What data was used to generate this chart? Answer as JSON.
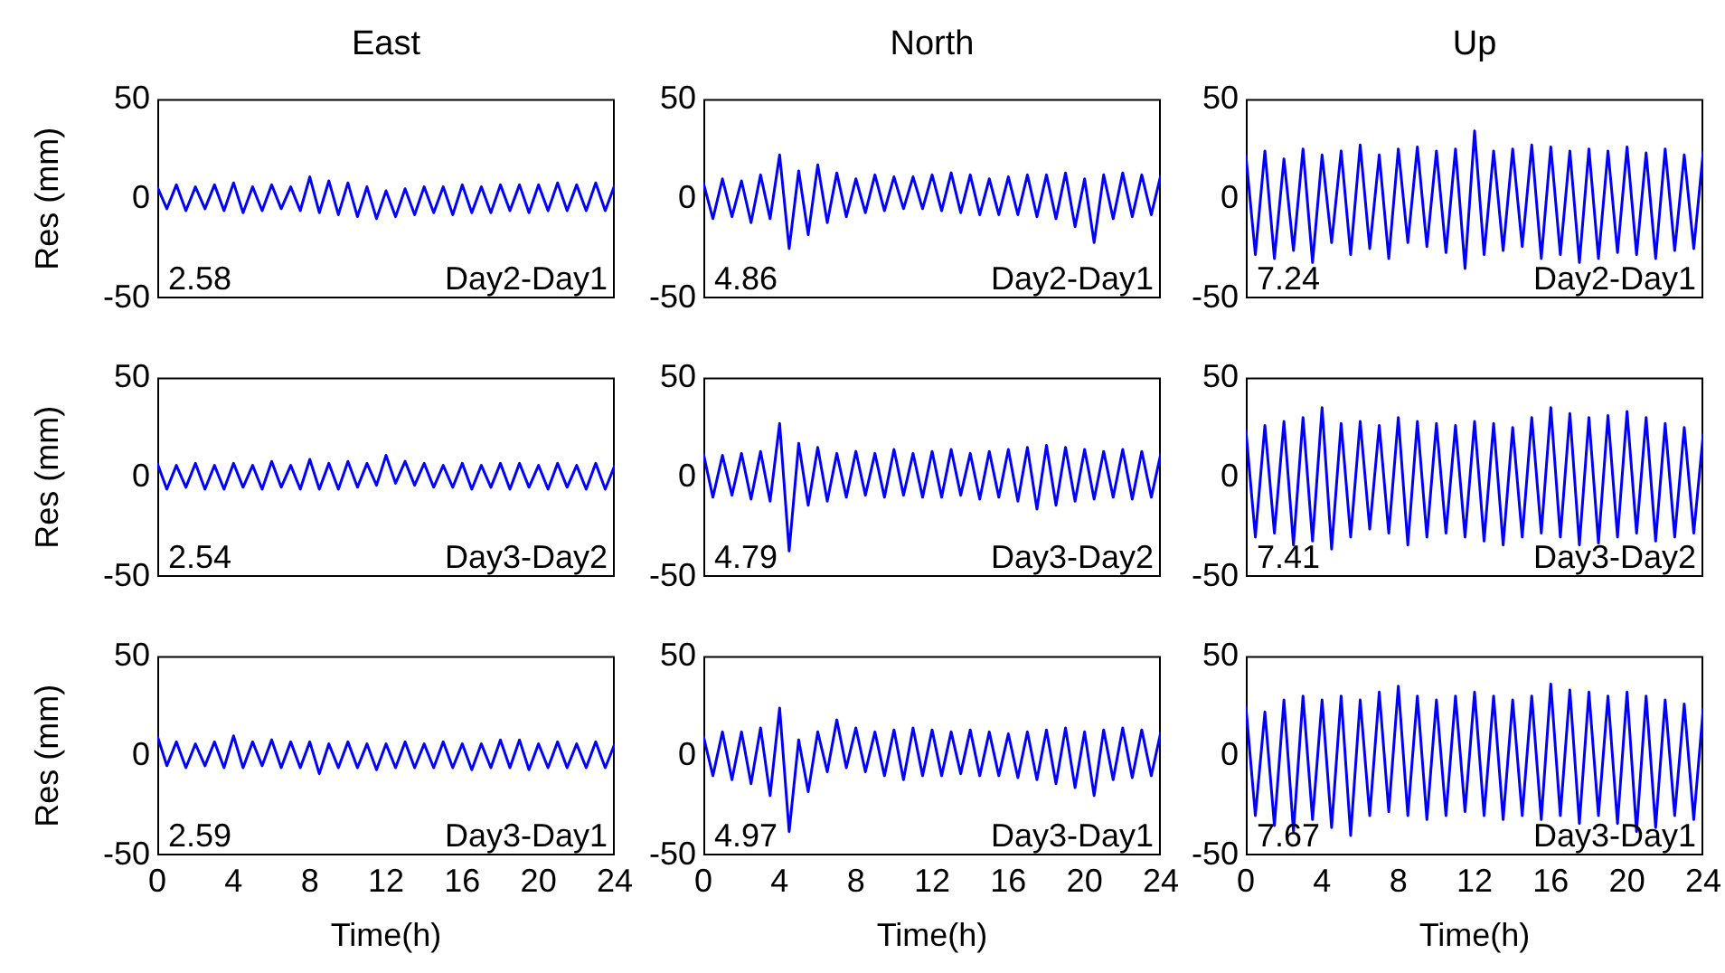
{
  "chart_data": [
    {
      "type": "line",
      "title": "East",
      "ylabel": "Res (mm)",
      "annotations": [
        "2.58",
        "Day2-Day1"
      ],
      "xlim": [
        0,
        24
      ],
      "xticks": [
        0,
        4,
        8,
        12,
        16,
        20,
        24
      ],
      "ylim": [
        -50,
        50
      ],
      "yticks": [
        -50,
        0,
        50
      ],
      "tick_labels": "y",
      "x": [
        0,
        0.5,
        1,
        1.5,
        2,
        2.5,
        3,
        3.5,
        4,
        4.5,
        5,
        5.5,
        6,
        6.5,
        7,
        7.5,
        8,
        8.5,
        9,
        9.5,
        10,
        10.5,
        11,
        11.5,
        12,
        12.5,
        13,
        13.5,
        14,
        14.5,
        15,
        15.5,
        16,
        16.5,
        17,
        17.5,
        18,
        18.5,
        19,
        19.5,
        20,
        20.5,
        21,
        21.5,
        22,
        22.5,
        23,
        23.5,
        24
      ],
      "series": [
        {
          "color": "#0000ff",
          "values": [
            6,
            -5,
            7,
            -6,
            6,
            -5,
            7,
            -6,
            8,
            -7,
            6,
            -6,
            7,
            -5,
            6,
            -6,
            11,
            -7,
            9,
            -8,
            8,
            -9,
            6,
            -10,
            4,
            -9,
            5,
            -8,
            6,
            -7,
            6,
            -8,
            7,
            -7,
            6,
            -7,
            7,
            -6,
            7,
            -7,
            7,
            -6,
            8,
            -6,
            7,
            -6,
            8,
            -6,
            7
          ]
        }
      ]
    },
    {
      "type": "line",
      "title": "North",
      "annotations": [
        "4.86",
        "Day2-Day1"
      ],
      "xlim": [
        0,
        24
      ],
      "xticks": [
        0,
        4,
        8,
        12,
        16,
        20,
        24
      ],
      "ylim": [
        -50,
        50
      ],
      "yticks": [
        -50,
        0,
        50
      ],
      "tick_labels": "y",
      "x": [
        0,
        0.5,
        1,
        1.5,
        2,
        2.5,
        3,
        3.5,
        4,
        4.5,
        5,
        5.5,
        6,
        6.5,
        7,
        7.5,
        8,
        8.5,
        9,
        9.5,
        10,
        10.5,
        11,
        11.5,
        12,
        12.5,
        13,
        13.5,
        14,
        14.5,
        15,
        15.5,
        16,
        16.5,
        17,
        17.5,
        18,
        18.5,
        19,
        19.5,
        20,
        20.5,
        21,
        21.5,
        22,
        22.5,
        23,
        23.5,
        24
      ],
      "series": [
        {
          "color": "#0000ff",
          "values": [
            8,
            -10,
            10,
            -9,
            9,
            -12,
            12,
            -10,
            22,
            -25,
            14,
            -18,
            17,
            -12,
            13,
            -9,
            10,
            -7,
            12,
            -6,
            11,
            -5,
            11,
            -5,
            12,
            -6,
            13,
            -7,
            12,
            -8,
            10,
            -8,
            11,
            -8,
            12,
            -9,
            12,
            -10,
            13,
            -14,
            10,
            -22,
            12,
            -10,
            13,
            -9,
            12,
            -8,
            12
          ]
        }
      ]
    },
    {
      "type": "line",
      "title": "Up",
      "annotations": [
        "7.24",
        "Day2-Day1"
      ],
      "xlim": [
        0,
        24
      ],
      "xticks": [
        0,
        4,
        8,
        12,
        16,
        20,
        24
      ],
      "ylim": [
        -50,
        50
      ],
      "yticks": [
        -50,
        0,
        50
      ],
      "tick_labels": "y",
      "x": [
        0,
        0.5,
        1,
        1.5,
        2,
        2.5,
        3,
        3.5,
        4,
        4.5,
        5,
        5.5,
        6,
        6.5,
        7,
        7.5,
        8,
        8.5,
        9,
        9.5,
        10,
        10.5,
        11,
        11.5,
        12,
        12.5,
        13,
        13.5,
        14,
        14.5,
        15,
        15.5,
        16,
        16.5,
        17,
        17.5,
        18,
        18.5,
        19,
        19.5,
        20,
        20.5,
        21,
        21.5,
        22,
        22.5,
        23,
        23.5,
        24
      ],
      "series": [
        {
          "color": "#0000ff",
          "values": [
            22,
            -28,
            24,
            -30,
            20,
            -26,
            25,
            -32,
            22,
            -22,
            24,
            -28,
            27,
            -25,
            22,
            -30,
            25,
            -22,
            26,
            -24,
            24,
            -27,
            25,
            -35,
            34,
            -28,
            24,
            -26,
            25,
            -24,
            27,
            -30,
            26,
            -28,
            24,
            -32,
            25,
            -30,
            24,
            -27,
            26,
            -28,
            23,
            -30,
            25,
            -26,
            22,
            -25,
            24
          ]
        }
      ]
    },
    {
      "type": "line",
      "ylabel": "Res (mm)",
      "annotations": [
        "2.54",
        "Day3-Day2"
      ],
      "xlim": [
        0,
        24
      ],
      "xticks": [
        0,
        4,
        8,
        12,
        16,
        20,
        24
      ],
      "ylim": [
        -50,
        50
      ],
      "yticks": [
        -50,
        0,
        50
      ],
      "tick_labels": "y",
      "x": [
        0,
        0.5,
        1,
        1.5,
        2,
        2.5,
        3,
        3.5,
        4,
        4.5,
        5,
        5.5,
        6,
        6.5,
        7,
        7.5,
        8,
        8.5,
        9,
        9.5,
        10,
        10.5,
        11,
        11.5,
        12,
        12.5,
        13,
        13.5,
        14,
        14.5,
        15,
        15.5,
        16,
        16.5,
        17,
        17.5,
        18,
        18.5,
        19,
        19.5,
        20,
        20.5,
        21,
        21.5,
        22,
        22.5,
        23,
        23.5,
        24
      ],
      "series": [
        {
          "color": "#0000ff",
          "values": [
            7,
            -6,
            6,
            -5,
            7,
            -6,
            6,
            -6,
            7,
            -5,
            6,
            -6,
            8,
            -5,
            6,
            -6,
            9,
            -6,
            7,
            -6,
            8,
            -5,
            7,
            -4,
            11,
            -3,
            8,
            -4,
            7,
            -5,
            6,
            -5,
            7,
            -6,
            6,
            -5,
            7,
            -6,
            7,
            -5,
            6,
            -6,
            7,
            -5,
            6,
            -6,
            7,
            -6,
            6
          ]
        }
      ]
    },
    {
      "type": "line",
      "annotations": [
        "4.79",
        "Day3-Day2"
      ],
      "xlim": [
        0,
        24
      ],
      "xticks": [
        0,
        4,
        8,
        12,
        16,
        20,
        24
      ],
      "ylim": [
        -50,
        50
      ],
      "yticks": [
        -50,
        0,
        50
      ],
      "tick_labels": "y",
      "x": [
        0,
        0.5,
        1,
        1.5,
        2,
        2.5,
        3,
        3.5,
        4,
        4.5,
        5,
        5.5,
        6,
        6.5,
        7,
        7.5,
        8,
        8.5,
        9,
        9.5,
        10,
        10.5,
        11,
        11.5,
        12,
        12.5,
        13,
        13.5,
        14,
        14.5,
        15,
        15.5,
        16,
        16.5,
        17,
        17.5,
        18,
        18.5,
        19,
        19.5,
        20,
        20.5,
        21,
        21.5,
        22,
        22.5,
        23,
        23.5,
        24
      ],
      "series": [
        {
          "color": "#0000ff",
          "values": [
            12,
            -10,
            11,
            -9,
            12,
            -11,
            13,
            -12,
            27,
            -37,
            17,
            -14,
            15,
            -12,
            12,
            -10,
            13,
            -9,
            12,
            -10,
            14,
            -9,
            12,
            -10,
            13,
            -10,
            14,
            -9,
            12,
            -11,
            13,
            -10,
            14,
            -12,
            15,
            -16,
            16,
            -14,
            15,
            -12,
            14,
            -11,
            13,
            -10,
            14,
            -11,
            13,
            -10,
            12
          ]
        }
      ]
    },
    {
      "type": "line",
      "annotations": [
        "7.41",
        "Day3-Day2"
      ],
      "xlim": [
        0,
        24
      ],
      "xticks": [
        0,
        4,
        8,
        12,
        16,
        20,
        24
      ],
      "ylim": [
        -50,
        50
      ],
      "yticks": [
        -50,
        0,
        50
      ],
      "tick_labels": "y",
      "x": [
        0,
        0.5,
        1,
        1.5,
        2,
        2.5,
        3,
        3.5,
        4,
        4.5,
        5,
        5.5,
        6,
        6.5,
        7,
        7.5,
        8,
        8.5,
        9,
        9.5,
        10,
        10.5,
        11,
        11.5,
        12,
        12.5,
        13,
        13.5,
        14,
        14.5,
        15,
        15.5,
        16,
        16.5,
        17,
        17.5,
        18,
        18.5,
        19,
        19.5,
        20,
        20.5,
        21,
        21.5,
        22,
        22.5,
        23,
        23.5,
        24
      ],
      "series": [
        {
          "color": "#0000ff",
          "values": [
            24,
            -30,
            26,
            -28,
            28,
            -34,
            30,
            -32,
            35,
            -36,
            27,
            -30,
            28,
            -26,
            26,
            -28,
            30,
            -34,
            28,
            -30,
            27,
            -28,
            26,
            -30,
            28,
            -32,
            27,
            -34,
            25,
            -30,
            30,
            -28,
            35,
            -30,
            32,
            -34,
            30,
            -33,
            31,
            -30,
            33,
            -28,
            30,
            -32,
            27,
            -30,
            25,
            -28,
            22
          ]
        }
      ]
    },
    {
      "type": "line",
      "ylabel": "Res (mm)",
      "xlabel": "Time(h)",
      "annotations": [
        "2.59",
        "Day3-Day1"
      ],
      "xlim": [
        0,
        24
      ],
      "xticks": [
        0,
        4,
        8,
        12,
        16,
        20,
        24
      ],
      "ylim": [
        -50,
        50
      ],
      "yticks": [
        -50,
        0,
        50
      ],
      "x": [
        0,
        0.5,
        1,
        1.5,
        2,
        2.5,
        3,
        3.5,
        4,
        4.5,
        5,
        5.5,
        6,
        6.5,
        7,
        7.5,
        8,
        8.5,
        9,
        9.5,
        10,
        10.5,
        11,
        11.5,
        12,
        12.5,
        13,
        13.5,
        14,
        14.5,
        15,
        15.5,
        16,
        16.5,
        17,
        17.5,
        18,
        18.5,
        19,
        19.5,
        20,
        20.5,
        21,
        21.5,
        22,
        22.5,
        23,
        23.5,
        24
      ],
      "series": [
        {
          "color": "#0000ff",
          "values": [
            10,
            -5,
            7,
            -6,
            6,
            -5,
            7,
            -6,
            10,
            -6,
            7,
            -5,
            8,
            -6,
            7,
            -6,
            7,
            -9,
            6,
            -6,
            7,
            -6,
            6,
            -7,
            6,
            -6,
            7,
            -6,
            6,
            -6,
            7,
            -6,
            6,
            -7,
            6,
            -6,
            8,
            -6,
            8,
            -7,
            6,
            -6,
            7,
            -6,
            6,
            -6,
            7,
            -6,
            6
          ]
        }
      ]
    },
    {
      "type": "line",
      "xlabel": "Time(h)",
      "annotations": [
        "4.97",
        "Day3-Day1"
      ],
      "xlim": [
        0,
        24
      ],
      "xticks": [
        0,
        4,
        8,
        12,
        16,
        20,
        24
      ],
      "ylim": [
        -50,
        50
      ],
      "yticks": [
        -50,
        0,
        50
      ],
      "x": [
        0,
        0.5,
        1,
        1.5,
        2,
        2.5,
        3,
        3.5,
        4,
        4.5,
        5,
        5.5,
        6,
        6.5,
        7,
        7.5,
        8,
        8.5,
        9,
        9.5,
        10,
        10.5,
        11,
        11.5,
        12,
        12.5,
        13,
        13.5,
        14,
        14.5,
        15,
        15.5,
        16,
        16.5,
        17,
        17.5,
        18,
        18.5,
        19,
        19.5,
        20,
        20.5,
        21,
        21.5,
        22,
        22.5,
        23,
        23.5,
        24
      ],
      "series": [
        {
          "color": "#0000ff",
          "values": [
            10,
            -10,
            12,
            -12,
            12,
            -14,
            14,
            -20,
            24,
            -38,
            8,
            -18,
            12,
            -8,
            18,
            -6,
            14,
            -8,
            12,
            -10,
            13,
            -12,
            14,
            -10,
            13,
            -10,
            12,
            -9,
            13,
            -10,
            12,
            -10,
            11,
            -11,
            12,
            -12,
            13,
            -14,
            14,
            -16,
            12,
            -20,
            13,
            -12,
            14,
            -11,
            13,
            -10,
            12
          ]
        }
      ]
    },
    {
      "type": "line",
      "xlabel": "Time(h)",
      "annotations": [
        "7.67",
        "Day3-Day1"
      ],
      "xlim": [
        0,
        24
      ],
      "xticks": [
        0,
        4,
        8,
        12,
        16,
        20,
        24
      ],
      "ylim": [
        -50,
        50
      ],
      "yticks": [
        -50,
        0,
        50
      ],
      "x": [
        0,
        0.5,
        1,
        1.5,
        2,
        2.5,
        3,
        3.5,
        4,
        4.5,
        5,
        5.5,
        6,
        6.5,
        7,
        7.5,
        8,
        8.5,
        9,
        9.5,
        10,
        10.5,
        11,
        11.5,
        12,
        12.5,
        13,
        13.5,
        14,
        14.5,
        15,
        15.5,
        16,
        16.5,
        17,
        17.5,
        18,
        18.5,
        19,
        19.5,
        20,
        20.5,
        21,
        21.5,
        22,
        22.5,
        23,
        23.5,
        24
      ],
      "series": [
        {
          "color": "#0000ff",
          "values": [
            25,
            -30,
            22,
            -35,
            28,
            -38,
            30,
            -32,
            28,
            -36,
            30,
            -40,
            28,
            -30,
            32,
            -28,
            35,
            -30,
            30,
            -32,
            28,
            -30,
            30,
            -28,
            32,
            -30,
            30,
            -32,
            28,
            -30,
            30,
            -32,
            36,
            -30,
            33,
            -34,
            32,
            -30,
            30,
            -34,
            32,
            -38,
            30,
            -36,
            28,
            -30,
            26,
            -32,
            24
          ]
        }
      ]
    }
  ]
}
